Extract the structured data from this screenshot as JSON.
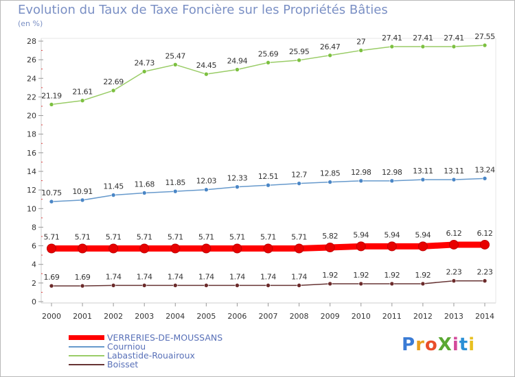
{
  "header": {
    "title": "Evolution du Taux de Taxe Foncière sur les Propriétés Bâties",
    "unit": "(en %)"
  },
  "logo": {
    "text": "ProXiti",
    "colors": [
      "#3a7bd5",
      "#e8a020",
      "#e94e2a",
      "#5aa832",
      "#d34a9b",
      "#2a8fd5",
      "#e8c020"
    ]
  },
  "legend": [
    {
      "label": "VERRERIES-DE-MOUSSANS",
      "color": "#ff0000"
    },
    {
      "label": "Courniou",
      "color": "#6699cc"
    },
    {
      "label": "Labastide-Rouairoux",
      "color": "#99cc66"
    },
    {
      "label": "Boisset",
      "color": "#663333"
    }
  ],
  "chart_data": {
    "type": "line",
    "title": "Evolution du Taux de Taxe Foncière sur les Propriétés Bâties",
    "ylabel": "(en %)",
    "xlabel": "",
    "ylim": [
      0,
      28
    ],
    "yticks": [
      0,
      2,
      4,
      6,
      8,
      10,
      12,
      14,
      16,
      18,
      20,
      22,
      24,
      26,
      28
    ],
    "x": [
      "2000",
      "2001",
      "2002",
      "2003",
      "2004",
      "2005",
      "2006",
      "2007",
      "2008",
      "2009",
      "2010",
      "2011",
      "2012",
      "2013",
      "2014"
    ],
    "series": [
      {
        "name": "VERRERIES-DE-MOUSSANS",
        "color": "#ff0000",
        "marker": "#e80000",
        "width": 9,
        "values": [
          5.71,
          5.71,
          5.71,
          5.71,
          5.71,
          5.71,
          5.71,
          5.71,
          5.71,
          5.82,
          5.94,
          5.94,
          5.94,
          6.12,
          6.12
        ],
        "labels": [
          "5.71",
          "5.71",
          "5.71",
          "5.71",
          "5.71",
          "5.71",
          "5.71",
          "5.71",
          "5.71",
          "5.82",
          "5.94",
          "5.94",
          "5.94",
          "6.12",
          "6.12"
        ]
      },
      {
        "name": "Courniou",
        "color": "#6699cc",
        "marker": "#4a86c6",
        "width": 1.5,
        "values": [
          10.75,
          10.91,
          11.45,
          11.68,
          11.85,
          12.03,
          12.33,
          12.51,
          12.7,
          12.85,
          12.98,
          12.98,
          13.11,
          13.11,
          13.24
        ],
        "labels": [
          "10.75",
          "10.91",
          "11.45",
          "11.68",
          "11.85",
          "12.03",
          "12.33",
          "12.51",
          "12.7",
          "12.85",
          "12.98",
          "12.98",
          "13.11",
          "13.11",
          "13.24"
        ]
      },
      {
        "name": "Labastide-Rouairoux",
        "color": "#99cc66",
        "marker": "#7cc040",
        "width": 1.5,
        "values": [
          21.19,
          21.61,
          22.69,
          24.73,
          25.47,
          24.45,
          24.94,
          25.69,
          25.95,
          26.47,
          27,
          27.41,
          27.41,
          27.41,
          27.55
        ],
        "labels": [
          "21.19",
          "21.61",
          "22.69",
          "24.73",
          "25.47",
          "24.45",
          "24.94",
          "25.69",
          "25.95",
          "26.47",
          "27",
          "27.41",
          "27.41",
          "27.41",
          "27.55"
        ]
      },
      {
        "name": "Boisset",
        "color": "#663333",
        "marker": "#6b2a2a",
        "width": 1.5,
        "values": [
          1.69,
          1.69,
          1.74,
          1.74,
          1.74,
          1.74,
          1.74,
          1.74,
          1.74,
          1.92,
          1.92,
          1.92,
          1.92,
          2.23,
          2.23
        ],
        "labels": [
          "1.69",
          "1.69",
          "1.74",
          "1.74",
          "1.74",
          "1.74",
          "1.74",
          "1.74",
          "1.74",
          "1.92",
          "1.92",
          "1.92",
          "1.92",
          "2.23",
          "2.23"
        ]
      }
    ],
    "grid": false
  }
}
